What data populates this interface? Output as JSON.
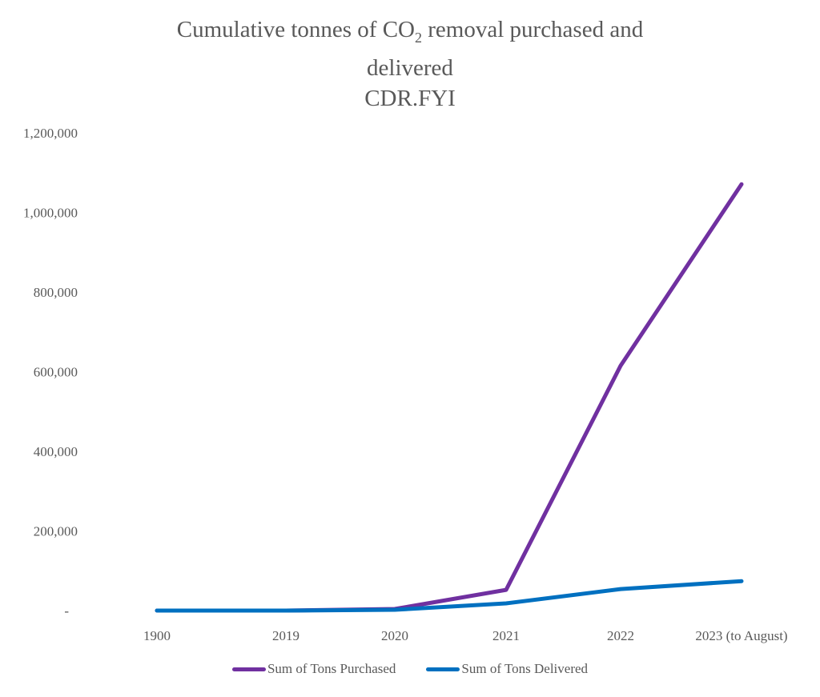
{
  "chart_data": {
    "type": "line",
    "title": {
      "line1_pre": "Cumulative tonnes of CO",
      "line1_sub": "2",
      "line1_post": " removal purchased and",
      "line2": "delivered",
      "line3": "CDR.FYI"
    },
    "xlabel": "",
    "ylabel": "",
    "categories": [
      "1900",
      "2019",
      "2020",
      "2021",
      "2022",
      "2023 (to August)"
    ],
    "ylim": [
      0,
      1200000
    ],
    "yticks": [
      0,
      200000,
      400000,
      600000,
      800000,
      1000000,
      1200000
    ],
    "ytick_labels": [
      "-",
      "200,000",
      "400,000",
      "600,000",
      "800,000",
      "1,000,000",
      "1,200,000"
    ],
    "grid": false,
    "legend_position": "bottom",
    "series": [
      {
        "name": "Sum of Tons Purchased",
        "color": "#7030a0",
        "values": [
          0,
          0,
          4000,
          52000,
          615000,
          1071000
        ]
      },
      {
        "name": "Sum of Tons Delivered",
        "color": "#0070c0",
        "values": [
          0,
          0,
          2000,
          18000,
          54000,
          74000
        ]
      }
    ]
  }
}
